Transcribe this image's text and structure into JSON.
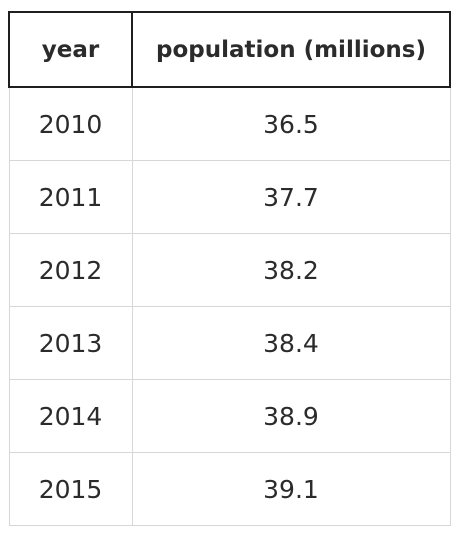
{
  "chart_data": {
    "type": "table",
    "columns": [
      "year",
      "population (millions)"
    ],
    "rows": [
      {
        "year": "2010",
        "population": "36.5"
      },
      {
        "year": "2011",
        "population": "37.7"
      },
      {
        "year": "2012",
        "population": "38.2"
      },
      {
        "year": "2013",
        "population": "38.4"
      },
      {
        "year": "2014",
        "population": "38.9"
      },
      {
        "year": "2015",
        "population": "39.1"
      }
    ],
    "x": [
      2010,
      2011,
      2012,
      2013,
      2014,
      2015
    ],
    "values": [
      36.5,
      37.7,
      38.2,
      38.4,
      38.9,
      39.1
    ]
  }
}
